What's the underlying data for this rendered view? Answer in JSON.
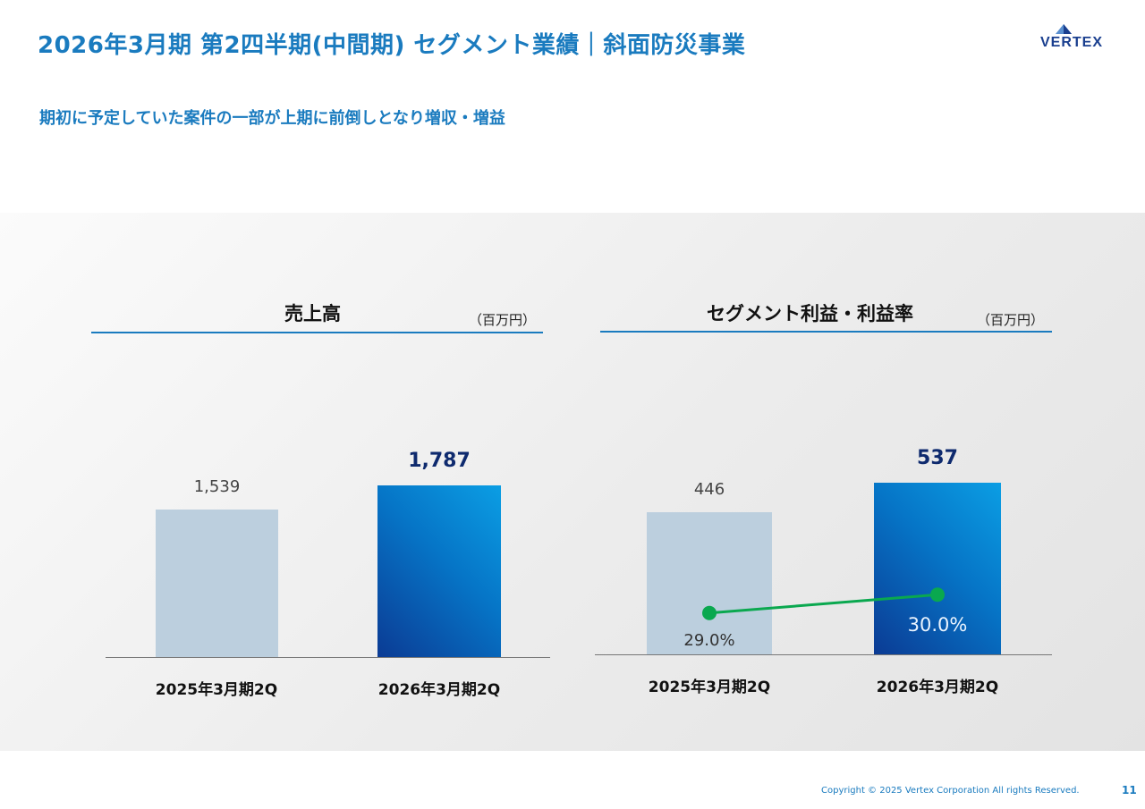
{
  "header": {
    "title": "2026年3月期 第2四半期(中間期) セグメント業績｜斜面防災事業",
    "logo_text": "VERTEX"
  },
  "subtitle": "期初に予定していた案件の一部が上期に前倒しとなり増収・増益",
  "colors": {
    "accent": "#1a7bbf",
    "prev_bar": "#bccfde",
    "curr_bar": "#0674c6",
    "margin_line": "#0aa84f"
  },
  "chart_data": [
    {
      "type": "bar",
      "title": "売上高",
      "unit": "（百万円）",
      "categories": [
        "2025年3月期2Q",
        "2026年3月期2Q"
      ],
      "values": [
        1539,
        1787
      ],
      "value_labels": [
        "1,539",
        "1,787"
      ],
      "ylim": [
        0,
        2000
      ]
    },
    {
      "type": "bar+line",
      "title": "セグメント利益・利益率",
      "unit": "（百万円）",
      "categories": [
        "2025年3月期2Q",
        "2026年3月期2Q"
      ],
      "values": [
        446,
        537
      ],
      "value_labels": [
        "446",
        "537"
      ],
      "margin": [
        29.0,
        30.0
      ],
      "margin_labels": [
        "29.0%",
        "30.0%"
      ],
      "ylim": [
        0,
        602
      ]
    }
  ],
  "footer": {
    "copyright": "Copyright © 2025 Vertex Corporation All rights Reserved.",
    "page": "11"
  }
}
